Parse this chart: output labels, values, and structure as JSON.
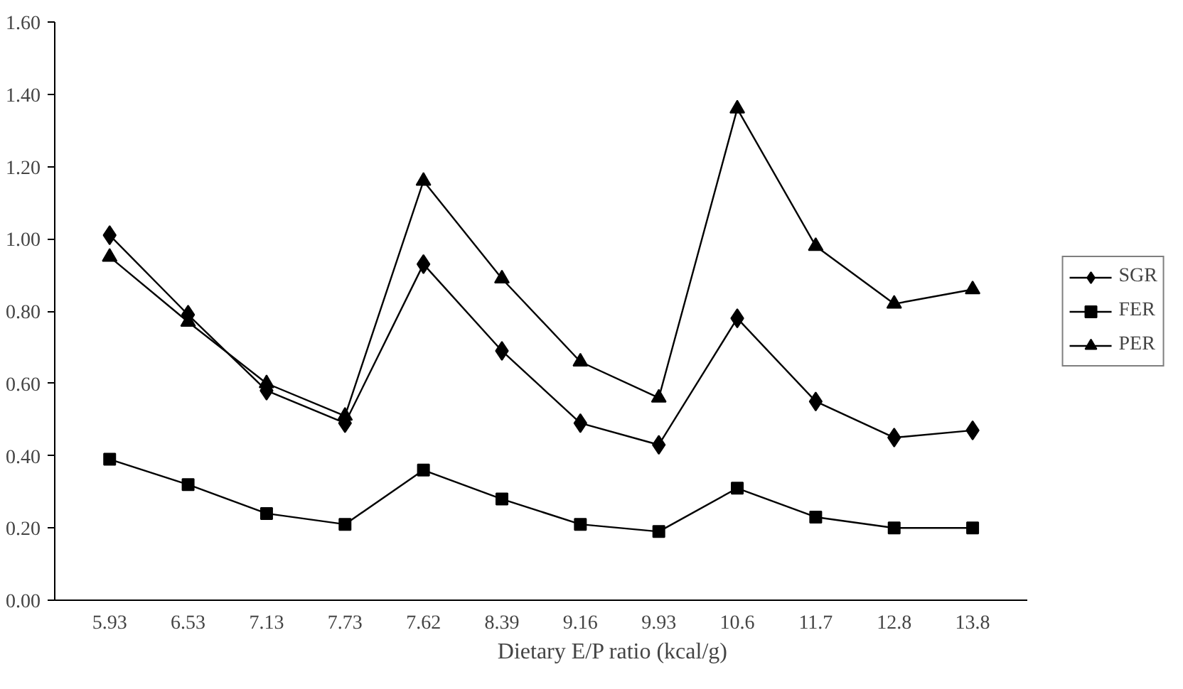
{
  "chart_data": {
    "type": "line",
    "xlabel": "Dietary E/P  ratio (kcal/g)",
    "categories": [
      "5.93",
      "6.53",
      "7.13",
      "7.73",
      "7.62",
      "8.39",
      "9.16",
      "9.93",
      "10.6",
      "11.7",
      "12.8",
      "13.8"
    ],
    "ylim": [
      0,
      1.6
    ],
    "yticks": [
      {
        "value": 0,
        "label": "0.00"
      },
      {
        "value": 0.2,
        "label": "0.20"
      },
      {
        "value": 0.4,
        "label": "0.40"
      },
      {
        "value": 0.6,
        "label": "0.60"
      },
      {
        "value": 0.8,
        "label": "0.80"
      },
      {
        "value": 1.0,
        "label": "1.00"
      },
      {
        "value": 1.2,
        "label": "1.20"
      },
      {
        "value": 1.4,
        "label": "1.40"
      },
      {
        "value": 1.6,
        "label": "1.60"
      }
    ],
    "grid": false,
    "legend": "right",
    "line_style": "solid",
    "series": [
      {
        "name": "SGR",
        "color": "#000000",
        "marker": "diamond",
        "values": [
          1.01,
          0.79,
          0.58,
          0.49,
          0.93,
          0.69,
          0.49,
          0.43,
          0.78,
          0.55,
          0.45,
          0.47
        ]
      },
      {
        "name": "FER",
        "color": "#000000",
        "marker": "square",
        "values": [
          0.39,
          0.32,
          0.24,
          0.21,
          0.36,
          0.28,
          0.21,
          0.19,
          0.31,
          0.23,
          0.2,
          0.2
        ]
      },
      {
        "name": "PER",
        "color": "#000000",
        "marker": "triangle",
        "values": [
          0.95,
          0.77,
          0.6,
          0.51,
          1.16,
          0.89,
          0.66,
          0.56,
          1.36,
          0.98,
          0.82,
          0.86
        ]
      }
    ]
  }
}
